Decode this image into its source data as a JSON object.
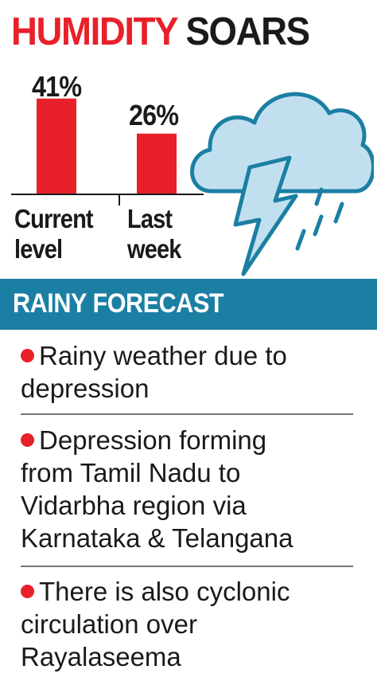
{
  "header": {
    "title_part1": "HUMIDITY",
    "title_part2": "SOARS"
  },
  "chart_data": {
    "type": "bar",
    "categories": [
      "Current level",
      "Last week"
    ],
    "category_lines": [
      [
        "Current",
        "level"
      ],
      [
        "Last",
        "week"
      ]
    ],
    "values": [
      41,
      26
    ],
    "value_labels": [
      "41%",
      "26%"
    ],
    "ylim": [
      0,
      45
    ],
    "bar_color": "#e8202a",
    "grid": false
  },
  "illustration": {
    "icon": "thundercloud-with-rain-icon",
    "cloud_color": "#c2dff0",
    "outline_color": "#1b7fa3"
  },
  "forecast": {
    "heading": "RAINY FORECAST",
    "banner_color": "#1b7fa3",
    "bullet_color": "#e8202a",
    "items": [
      {
        "lines": [
          "Rainy weather due to",
          "depression"
        ]
      },
      {
        "lines": [
          "Depression forming",
          "from Tamil Nadu to",
          "Vidarbha region via",
          "Karnataka & Telangana"
        ]
      },
      {
        "lines": [
          "There is also cyclonic",
          "circulation over",
          "Rayalaseema"
        ]
      }
    ]
  }
}
